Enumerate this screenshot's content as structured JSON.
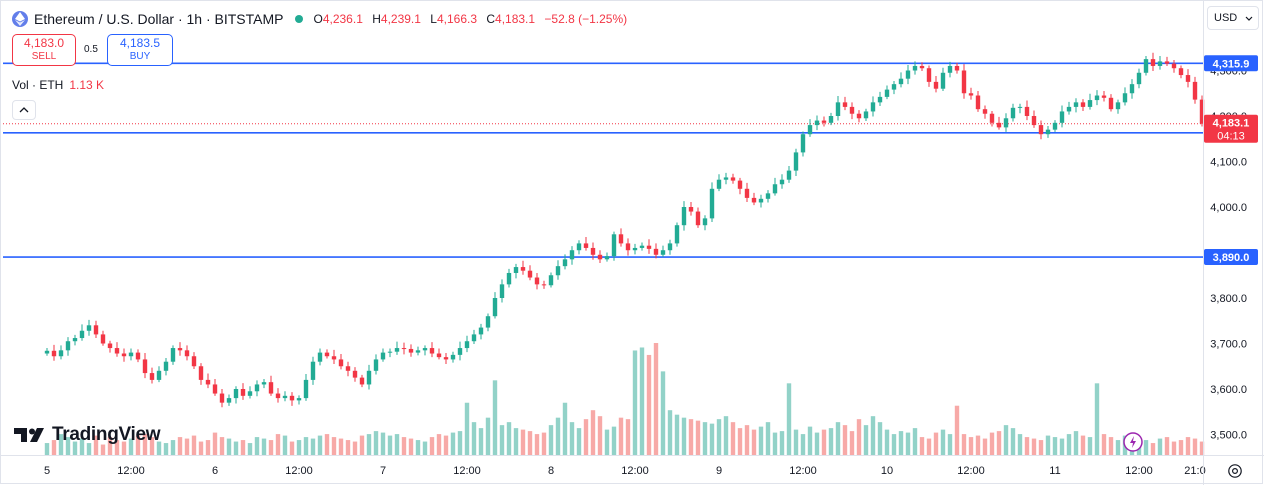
{
  "header": {
    "title": "Ethereum / U.S. Dollar · 1h · BITSTAMP",
    "ohlc": [
      {
        "k": "O",
        "v": "4,236.1"
      },
      {
        "k": "H",
        "v": "4,239.1"
      },
      {
        "k": "L",
        "v": "4,166.3"
      },
      {
        "k": "C",
        "v": "4,183.1"
      },
      {
        "k": "",
        "v": "−52.8 (−1.25%)"
      }
    ]
  },
  "trade": {
    "sell_price": "4,183.0",
    "sell_label": "SELL",
    "spread": "0.5",
    "buy_price": "4,183.5",
    "buy_label": "BUY"
  },
  "volume": {
    "label": "Vol · ETH",
    "value": "1.13 K"
  },
  "currency": "USD",
  "logo_text": "TradingView",
  "colors": {
    "up": "#22ab94",
    "down": "#f23645",
    "line": "#2962ff",
    "up_vol": "#92d2c8",
    "down_vol": "#f7a9a7"
  },
  "icons": {
    "coin": "ethereum-icon",
    "collapse": "chevron-up-icon",
    "currency": "chevron-down-icon",
    "settings": "gear-icon",
    "logo": "tradingview-logo-icon",
    "flash": "lightning-icon"
  },
  "chart_data": {
    "type": "candlestick",
    "y_ticks": [
      "4,300.0",
      "4,200.0",
      "4,100.0",
      "4,000.0",
      "3,900.0",
      "3,800.0",
      "3,700.0",
      "3,600.0",
      "3,500.0"
    ],
    "x_ticks": [
      {
        "label": "5",
        "t": 0
      },
      {
        "label": "12:00",
        "t": 12
      },
      {
        "label": "6",
        "t": 24
      },
      {
        "label": "12:00",
        "t": 36
      },
      {
        "label": "7",
        "t": 48
      },
      {
        "label": "12:00",
        "t": 60
      },
      {
        "label": "8",
        "t": 72
      },
      {
        "label": "12:00",
        "t": 84
      },
      {
        "label": "9",
        "t": 96
      },
      {
        "label": "12:00",
        "t": 108
      },
      {
        "label": "10",
        "t": 120
      },
      {
        "label": "12:00",
        "t": 132
      },
      {
        "label": "11",
        "t": 144
      },
      {
        "label": "12:00",
        "t": 156
      },
      {
        "label": "21:0",
        "t": 164
      }
    ],
    "price_lines": [
      {
        "value": 4315.9,
        "label": "4,315.9"
      },
      {
        "value": 4163.0,
        "label": "4,163.0"
      },
      {
        "value": 3890.0,
        "label": "3,890.0"
      }
    ],
    "last_price": {
      "value": 4183.1,
      "label": "4,183.1",
      "countdown": "04:13"
    },
    "closes": [
      3684,
      3672,
      3685,
      3705,
      3712,
      3728,
      3740,
      3720,
      3700,
      3690,
      3678,
      3672,
      3680,
      3665,
      3635,
      3620,
      3640,
      3660,
      3690,
      3685,
      3672,
      3650,
      3620,
      3610,
      3590,
      3570,
      3580,
      3600,
      3585,
      3595,
      3610,
      3615,
      3590,
      3580,
      3585,
      3575,
      3580,
      3620,
      3660,
      3680,
      3672,
      3665,
      3650,
      3640,
      3625,
      3610,
      3640,
      3665,
      3680,
      3682,
      3690,
      3688,
      3680,
      3685,
      3690,
      3678,
      3670,
      3665,
      3675,
      3690,
      3705,
      3720,
      3735,
      3760,
      3800,
      3830,
      3855,
      3868,
      3860,
      3845,
      3830,
      3828,
      3850,
      3870,
      3885,
      3905,
      3920,
      3910,
      3895,
      3885,
      3892,
      3940,
      3920,
      3905,
      3910,
      3915,
      3908,
      3895,
      3905,
      3920,
      3960,
      4000,
      3990,
      3960,
      3975,
      4040,
      4060,
      4065,
      4058,
      4040,
      4020,
      4010,
      4018,
      4030,
      4050,
      4060,
      4080,
      4120,
      4160,
      4180,
      4190,
      4185,
      4200,
      4230,
      4220,
      4205,
      4195,
      4210,
      4230,
      4242,
      4258,
      4270,
      4282,
      4300,
      4310,
      4305,
      4275,
      4260,
      4295,
      4310,
      4300,
      4250,
      4245,
      4215,
      4205,
      4185,
      4175,
      4195,
      4218,
      4220,
      4200,
      4180,
      4160,
      4170,
      4185,
      4210,
      4220,
      4230,
      4220,
      4235,
      4245,
      4240,
      4215,
      4230,
      4250,
      4270,
      4295,
      4325,
      4310,
      4320,
      4315,
      4305,
      4290,
      4275,
      4236,
      4183
    ],
    "volumes": [
      8,
      10,
      14,
      12,
      9,
      11,
      8,
      13,
      7,
      12,
      10,
      9,
      11,
      13,
      14,
      12,
      9,
      8,
      10,
      12,
      11,
      13,
      9,
      10,
      15,
      12,
      11,
      9,
      10,
      8,
      12,
      11,
      10,
      14,
      13,
      9,
      10,
      12,
      11,
      13,
      14,
      12,
      11,
      10,
      9,
      13,
      14,
      16,
      15,
      13,
      14,
      12,
      11,
      10,
      9,
      12,
      14,
      13,
      15,
      16,
      35,
      22,
      18,
      25,
      50,
      20,
      22,
      18,
      17,
      16,
      14,
      15,
      20,
      25,
      35,
      22,
      18,
      24,
      30,
      26,
      17,
      19,
      25,
      24,
      70,
      72,
      67,
      75,
      56,
      30,
      27,
      25,
      24,
      23,
      22,
      21,
      24,
      26,
      22,
      18,
      20,
      17,
      19,
      22,
      15,
      16,
      48,
      17,
      14,
      19,
      15,
      17,
      18,
      22,
      20,
      16,
      24,
      20,
      26,
      22,
      17,
      14,
      16,
      15,
      18,
      12,
      11,
      15,
      17,
      14,
      33,
      14,
      12,
      13,
      11,
      15,
      16,
      20,
      18,
      14,
      12,
      11,
      10,
      13,
      12,
      11,
      14,
      16,
      13,
      12,
      48,
      14,
      12,
      10,
      13,
      11,
      9,
      10,
      8,
      11,
      12,
      9,
      10,
      12,
      11,
      9
    ]
  }
}
